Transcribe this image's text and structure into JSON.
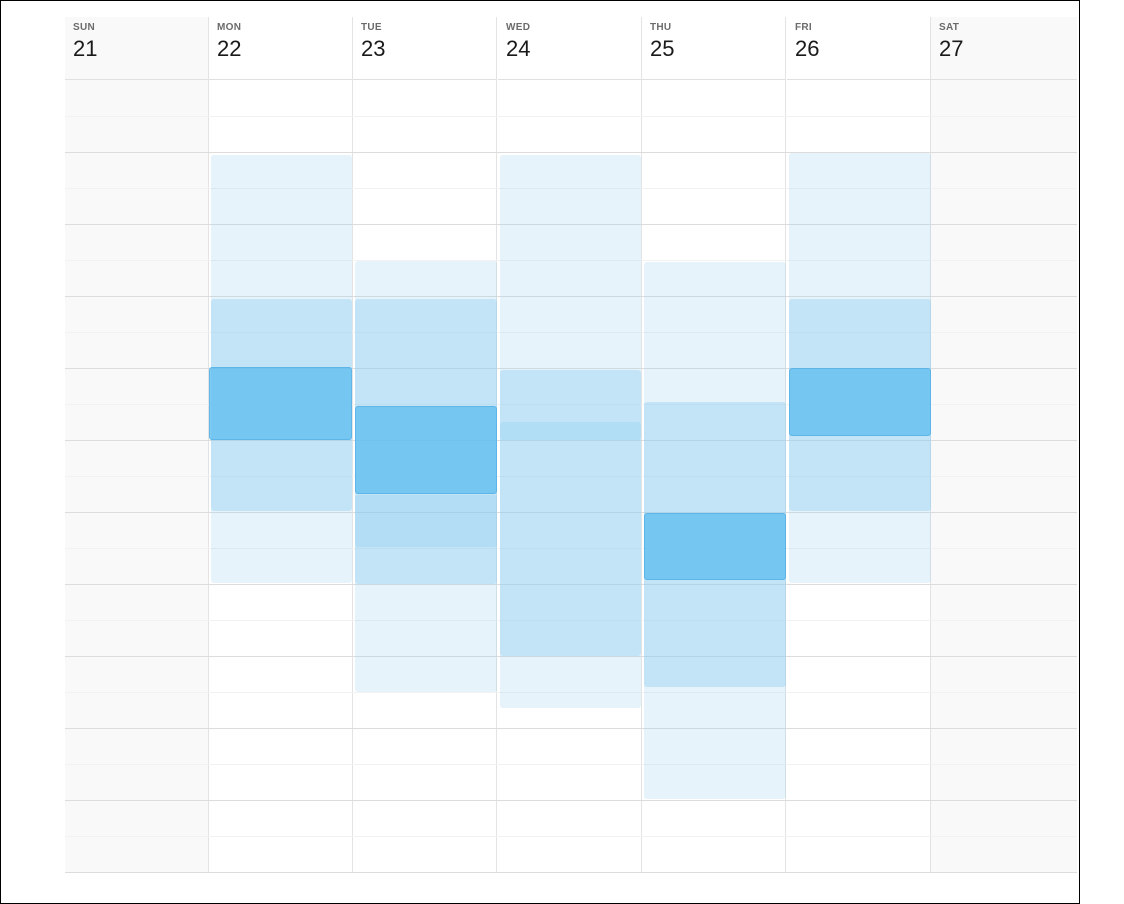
{
  "days": [
    {
      "dow": "SUN",
      "date": "21",
      "weekend": true
    },
    {
      "dow": "MON",
      "date": "22",
      "weekend": false
    },
    {
      "dow": "TUE",
      "date": "23",
      "weekend": false
    },
    {
      "dow": "WED",
      "date": "24",
      "weekend": false
    },
    {
      "dow": "THU",
      "date": "25",
      "weekend": false
    },
    {
      "dow": "FRI",
      "date": "26",
      "weekend": false
    },
    {
      "dow": "SAT",
      "date": "27",
      "weekend": true
    }
  ],
  "colors": {
    "event_light": "#e6f4fb",
    "event_medium": "#d2ecf8",
    "event_strong": "#7ccdf4",
    "weekend_bg": "#f9f9f9",
    "grid_line": "#dcdcdc"
  }
}
